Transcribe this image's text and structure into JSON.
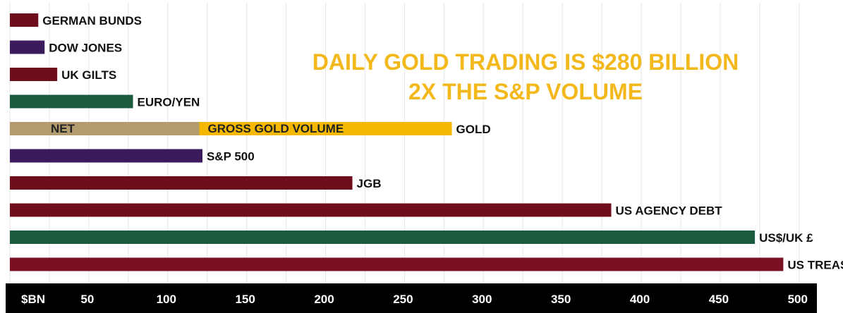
{
  "chart_data": {
    "type": "bar",
    "orientation": "horizontal",
    "title_lines": [
      "DAILY GOLD TRADING IS $280 BILLION",
      "2X THE S&P VOLUME"
    ],
    "unit_label": "$BN",
    "x_ticks": [
      50,
      100,
      150,
      200,
      250,
      300,
      350,
      400,
      450,
      500
    ],
    "xlim": [
      0,
      520
    ],
    "grid": true,
    "categories": [
      "GERMAN BUNDS",
      "DOW JONES",
      "UK GILTS",
      "EURO/YEN",
      "GOLD",
      "S&P 500",
      "JGB",
      "US AGENCY DEBT",
      "US$/UK £",
      "US TREAS."
    ],
    "values": [
      18,
      22,
      30,
      78,
      280,
      122,
      217,
      381,
      472,
      490
    ],
    "bar_colors": [
      "#6e0e1c",
      "#3b1a5c",
      "#6e0e1c",
      "#1b5a3d",
      "#f5b800",
      "#3b1a5c",
      "#6e0e1c",
      "#6e0e1c",
      "#1b5a3d",
      "#7a1024"
    ],
    "gold_breakdown": {
      "net": 120,
      "gross": 280,
      "net_label": "NET",
      "gross_label": "GROSS GOLD VOLUME",
      "net_color": "#b39b70",
      "gross_color": "#f5b800"
    },
    "title_color": "#f2b81c",
    "axis_band_color": "#000000"
  }
}
